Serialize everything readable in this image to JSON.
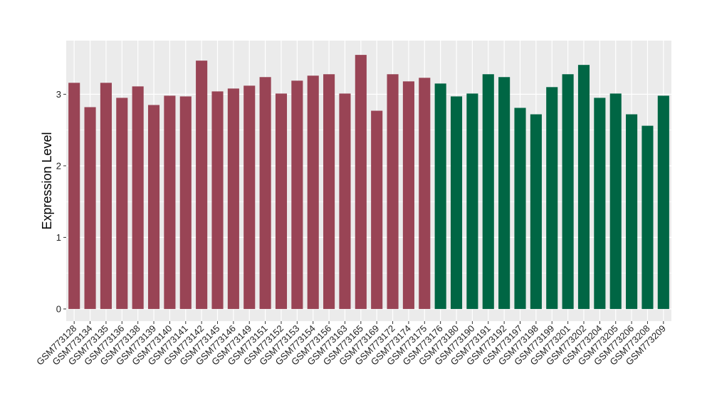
{
  "chart_data": {
    "type": "bar",
    "ylabel": "Expression Level",
    "xlabel": "",
    "title": "",
    "ylim": [
      -0.17,
      3.75
    ],
    "yticks": [
      0,
      1,
      2,
      3
    ],
    "grid": true,
    "legend": "none",
    "colors": {
      "group1": "#994455",
      "group2": "#006644",
      "panel": "#ebebeb",
      "gridline": "#ffffff"
    },
    "categories": [
      "GSM773128",
      "GSM773134",
      "GSM773135",
      "GSM773136",
      "GSM773138",
      "GSM773139",
      "GSM773140",
      "GSM773141",
      "GSM773142",
      "GSM773145",
      "GSM773146",
      "GSM773149",
      "GSM773151",
      "GSM773152",
      "GSM773153",
      "GSM773154",
      "GSM773156",
      "GSM773163",
      "GSM773165",
      "GSM773169",
      "GSM773172",
      "GSM773174",
      "GSM773175",
      "GSM773176",
      "GSM773180",
      "GSM773190",
      "GSM773191",
      "GSM773192",
      "GSM773197",
      "GSM773198",
      "GSM773199",
      "GSM773201",
      "GSM773202",
      "GSM773204",
      "GSM773205",
      "GSM773206",
      "GSM773208",
      "GSM773209"
    ],
    "values": [
      3.16,
      2.82,
      3.16,
      2.95,
      3.11,
      2.85,
      2.98,
      2.97,
      3.47,
      3.04,
      3.08,
      3.12,
      3.24,
      3.01,
      3.19,
      3.26,
      3.28,
      3.01,
      3.55,
      2.77,
      3.28,
      3.18,
      3.23,
      3.15,
      2.97,
      3.01,
      3.28,
      3.24,
      2.81,
      2.72,
      3.1,
      3.28,
      3.41,
      2.95,
      3.01,
      2.72,
      2.56,
      2.98
    ],
    "groups": [
      1,
      1,
      1,
      1,
      1,
      1,
      1,
      1,
      1,
      1,
      1,
      1,
      1,
      1,
      1,
      1,
      1,
      1,
      1,
      1,
      1,
      1,
      1,
      2,
      2,
      2,
      2,
      2,
      2,
      2,
      2,
      2,
      2,
      2,
      2,
      2,
      2,
      2
    ]
  }
}
